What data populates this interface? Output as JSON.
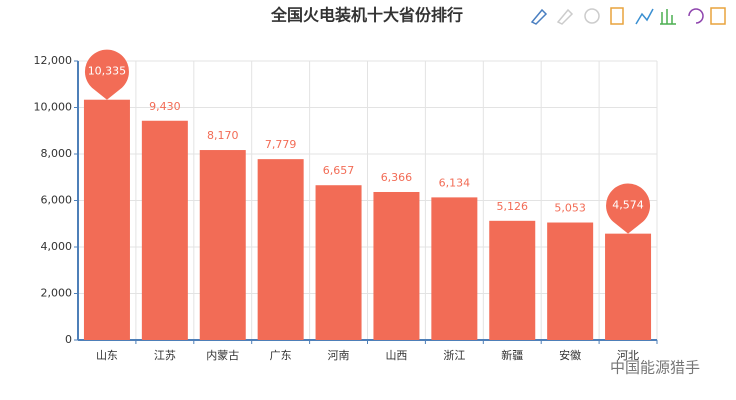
{
  "chart_data": {
    "type": "bar",
    "title": "全国火电装机十大省份排行",
    "categories": [
      "山东",
      "江苏",
      "内蒙古",
      "广东",
      "河南",
      "山西",
      "浙江",
      "新疆",
      "安徽",
      "河北"
    ],
    "values": [
      10335,
      9430,
      8170,
      7779,
      6657,
      6366,
      6134,
      5126,
      5053,
      4574
    ],
    "value_labels": [
      "10,335",
      "9,430",
      "8,170",
      "7,779",
      "6,657",
      "6,366",
      "6,134",
      "5,126",
      "5,053",
      "4,574"
    ],
    "color": "#f26c56",
    "ylim": [
      0,
      12000
    ],
    "yticks": [
      0,
      {
        "value": 2000,
        "label": "2,000"
      },
      {
        "value": 4000,
        "label": "4,000"
      },
      {
        "value": 6000,
        "label": "6,000"
      },
      {
        "value": 8000,
        "label": "8,000"
      },
      {
        "value": 10000,
        "label": "10,000"
      },
      {
        "value": 12000,
        "label": "12,000"
      }
    ],
    "grid": true,
    "watermark": "中国能源猎手"
  }
}
